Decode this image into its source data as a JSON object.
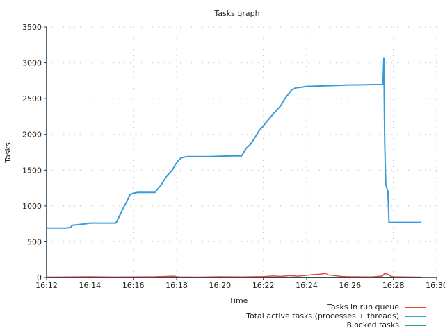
{
  "chart_data": {
    "type": "line",
    "title": "Tasks graph",
    "xlabel": "Time",
    "ylabel": "Tasks",
    "xlim": [
      0,
      18
    ],
    "ylim": [
      0,
      3500
    ],
    "x_ticks": [
      {
        "v": 0,
        "label": "16:12"
      },
      {
        "v": 2,
        "label": "16:14"
      },
      {
        "v": 4,
        "label": "16:16"
      },
      {
        "v": 6,
        "label": "16:18"
      },
      {
        "v": 8,
        "label": "16:20"
      },
      {
        "v": 10,
        "label": "16:22"
      },
      {
        "v": 12,
        "label": "16:24"
      },
      {
        "v": 14,
        "label": "16:26"
      },
      {
        "v": 16,
        "label": "16:28"
      },
      {
        "v": 18,
        "label": "16:30"
      }
    ],
    "y_ticks": [
      0,
      500,
      1000,
      1500,
      2000,
      2500,
      3000,
      3500
    ],
    "grid": true,
    "legend_position": "bottom-right",
    "series": [
      {
        "name": "Tasks in run queue",
        "color": "#e8473d",
        "x": [
          0,
          1,
          2,
          3,
          4,
          5,
          5.9,
          6.0,
          6.1,
          7,
          8,
          9,
          10,
          10.5,
          10.8,
          11.2,
          11.6,
          12.0,
          12.3,
          12.6,
          12.9,
          13.0,
          13.3,
          13.6,
          14,
          15,
          15.5,
          15.6,
          15.65,
          15.75,
          15.85,
          16,
          17,
          17.3
        ],
        "y": [
          5,
          8,
          10,
          6,
          8,
          10,
          18,
          12,
          8,
          5,
          10,
          8,
          12,
          20,
          15,
          25,
          18,
          30,
          40,
          45,
          55,
          35,
          25,
          15,
          10,
          8,
          20,
          60,
          50,
          45,
          20,
          10,
          5,
          5
        ]
      },
      {
        "name": "Total active tasks (processes + threads)",
        "color": "#3a9ad9",
        "x": [
          0,
          0.9,
          1.1,
          1.2,
          1.5,
          1.8,
          2.0,
          3.2,
          3.35,
          3.5,
          3.7,
          3.85,
          4.0,
          4.2,
          4.5,
          5.0,
          5.3,
          5.55,
          5.8,
          5.9,
          6.1,
          6.2,
          6.5,
          7.0,
          7.5,
          8.0,
          8.5,
          9.0,
          9.2,
          9.4,
          9.6,
          9.8,
          10.0,
          10.3,
          10.5,
          10.8,
          11.0,
          11.3,
          11.5,
          11.8,
          12.0,
          12.5,
          13.0,
          13.5,
          14.0,
          14.5,
          15.0,
          15.52,
          15.56,
          15.6,
          15.65,
          15.7,
          15.75,
          15.8,
          16.2,
          16.8,
          17.3
        ],
        "y": [
          690,
          690,
          700,
          730,
          740,
          750,
          760,
          760,
          850,
          950,
          1060,
          1160,
          1180,
          1190,
          1190,
          1190,
          1300,
          1420,
          1500,
          1560,
          1640,
          1670,
          1690,
          1690,
          1690,
          1695,
          1700,
          1700,
          1800,
          1860,
          1950,
          2050,
          2120,
          2230,
          2300,
          2400,
          2500,
          2620,
          2650,
          2660,
          2670,
          2675,
          2680,
          2685,
          2690,
          2690,
          2695,
          2695,
          3070,
          1900,
          1300,
          1250,
          1200,
          770,
          770,
          770,
          770
        ]
      },
      {
        "name": "Blocked tasks",
        "color": "#27ae60",
        "x": [
          0,
          4,
          8,
          12,
          16,
          17.3
        ],
        "y": [
          2,
          2,
          2,
          2,
          2,
          2
        ]
      }
    ]
  }
}
